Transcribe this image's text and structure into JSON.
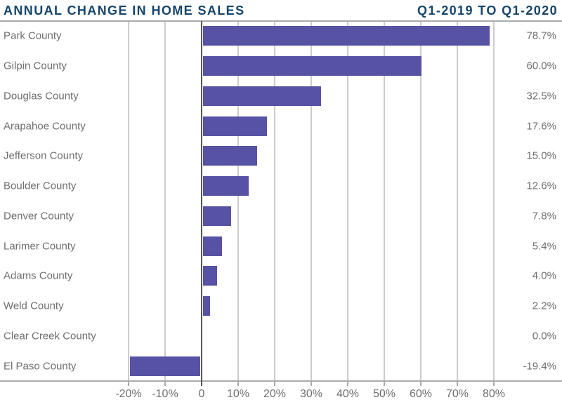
{
  "header": {
    "title": "ANNUAL CHANGE IN HOME SALES",
    "period": "Q1-2019 TO Q1-2020"
  },
  "chart_data": {
    "type": "bar",
    "orientation": "horizontal",
    "title": "ANNUAL CHANGE IN HOME SALES",
    "subtitle": "Q1-2019 TO Q1-2020",
    "categories": [
      "Park County",
      "Gilpin County",
      "Douglas County",
      "Arapahoe County",
      "Jefferson County",
      "Boulder County",
      "Denver County",
      "Larimer County",
      "Adams County",
      "Weld County",
      "Clear Creek County",
      "El Paso County"
    ],
    "values": [
      78.7,
      60.0,
      32.5,
      17.6,
      15.0,
      12.6,
      7.8,
      5.4,
      4.0,
      2.2,
      0.0,
      -19.4
    ],
    "value_labels": [
      "78.7%",
      "60.0%",
      "32.5%",
      "17.6%",
      "15.0%",
      "12.6%",
      "7.8%",
      "5.4%",
      "4.0%",
      "2.2%",
      "0.0%",
      "-19.4%"
    ],
    "xlabel": "",
    "ylabel": "",
    "xlim": [
      -20,
      80
    ],
    "x_ticks": [
      -20,
      -10,
      0,
      10,
      20,
      30,
      40,
      50,
      60,
      70,
      80
    ],
    "x_tick_labels": [
      "-20%",
      "-10%",
      "0",
      "10%",
      "20%",
      "30%",
      "40%",
      "50%",
      "60%",
      "70%",
      "80%"
    ],
    "grid": true,
    "legend": "none"
  },
  "colors": {
    "bar": "#5852a4",
    "title": "#17456b",
    "label": "#6d6e71",
    "gridline": "#cbcccd",
    "zero_line": "#58595c",
    "axis_line": "#a9abae",
    "background": "#ffffff"
  }
}
